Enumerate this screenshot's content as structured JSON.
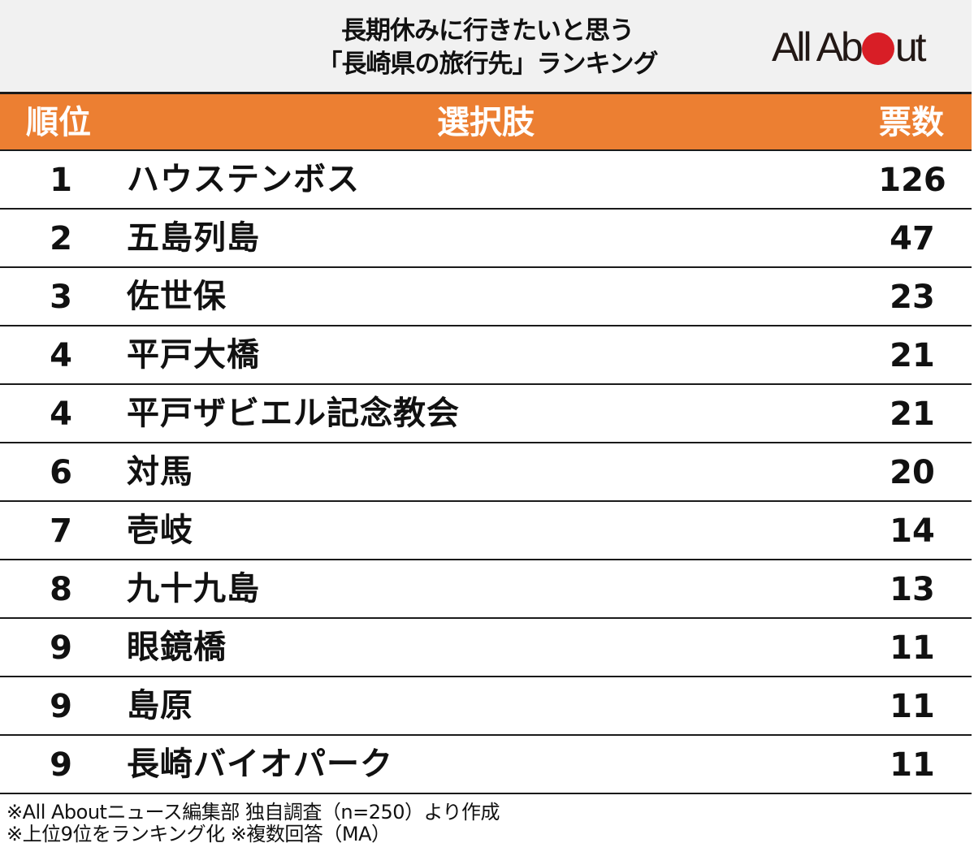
{
  "header": {
    "title_line1": "長期休みに行きたいと思う",
    "title_line2": "「長崎県の旅行先」ランキング",
    "logo": {
      "text_before": "All Ab",
      "text_after": "ut",
      "dot_color": "#d81e26"
    }
  },
  "table": {
    "columns": [
      "順位",
      "選択肢",
      "票数"
    ],
    "header_color": "#ec7f32",
    "rows": [
      {
        "rank": "1",
        "name": "ハウステンボス",
        "votes": "126"
      },
      {
        "rank": "2",
        "name": "五島列島",
        "votes": "47"
      },
      {
        "rank": "3",
        "name": "佐世保",
        "votes": "23"
      },
      {
        "rank": "4",
        "name": "平戸大橋",
        "votes": "21"
      },
      {
        "rank": "4",
        "name": "平戸ザビエル記念教会",
        "votes": "21"
      },
      {
        "rank": "6",
        "name": "対馬",
        "votes": "20"
      },
      {
        "rank": "7",
        "name": "壱岐",
        "votes": "14"
      },
      {
        "rank": "8",
        "name": "九十九島",
        "votes": "13"
      },
      {
        "rank": "9",
        "name": "眼鏡橋",
        "votes": "11"
      },
      {
        "rank": "9",
        "name": "島原",
        "votes": "11"
      },
      {
        "rank": "9",
        "name": "長崎バイオパーク",
        "votes": "11"
      }
    ]
  },
  "footer": {
    "note1": "※All Aboutニュース編集部 独自調査（n=250）より作成",
    "note2": "※上位9位をランキング化 ※複数回答（MA）"
  },
  "chart_data": {
    "type": "table",
    "title": "長期休みに行きたいと思う「長崎県の旅行先」ランキング",
    "columns": [
      "順位",
      "選択肢",
      "票数"
    ],
    "categories": [
      "ハウステンボス",
      "五島列島",
      "佐世保",
      "平戸大橋",
      "平戸ザビエル記念教会",
      "対馬",
      "壱岐",
      "九十九島",
      "眼鏡橋",
      "島原",
      "長崎バイオパーク"
    ],
    "ranks": [
      1,
      2,
      3,
      4,
      4,
      6,
      7,
      8,
      9,
      9,
      9
    ],
    "values": [
      126,
      47,
      23,
      21,
      21,
      20,
      14,
      13,
      11,
      11,
      11
    ],
    "annotations": [
      "※All Aboutニュース編集部 独自調査（n=250）より作成",
      "※上位9位をランキング化 ※複数回答（MA）"
    ]
  }
}
